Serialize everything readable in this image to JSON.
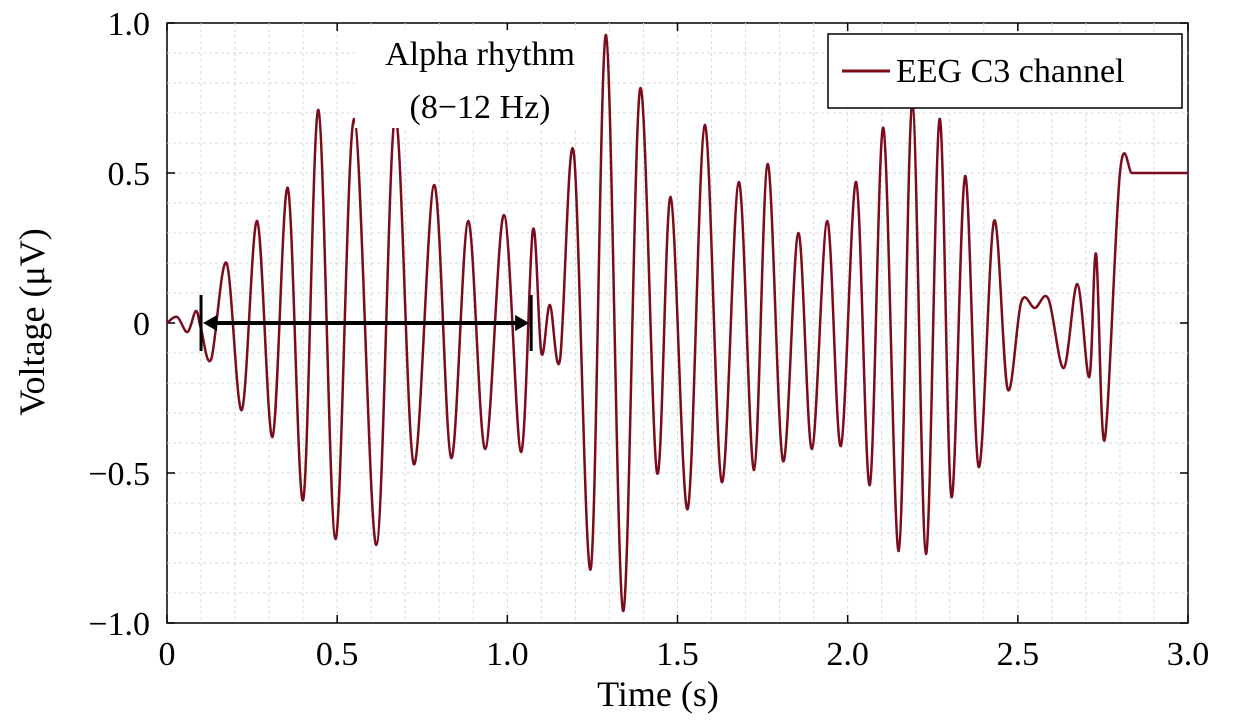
{
  "chart_data": {
    "type": "line",
    "title": "",
    "xlabel": "Time (s)",
    "ylabel": "Voltage (μV)",
    "xlim": [
      0,
      3.0
    ],
    "ylim": [
      -1.0,
      1.0
    ],
    "grid": true,
    "legend_position": "top-right",
    "xticks": [
      0,
      0.5,
      1.0,
      1.5,
      2.0,
      2.5,
      3.0
    ],
    "xtick_labels": [
      "0",
      "0.5",
      "1.0",
      "1.5",
      "2.0",
      "2.5",
      "3.0"
    ],
    "yticks": [
      1.0,
      0.5,
      0,
      -0.5,
      -1.0
    ],
    "ytick_labels": [
      "1.0",
      "0.5",
      "0",
      "−0.5",
      "−1.0"
    ],
    "series": [
      {
        "name": "EEG C3 channel",
        "color": "#7b0c1c",
        "x": [
          0,
          0.03,
          0.06,
          0.085,
          0.1,
          0.13,
          0.175,
          0.22,
          0.265,
          0.31,
          0.355,
          0.4,
          0.445,
          0.495,
          0.55,
          0.615,
          0.67,
          0.725,
          0.785,
          0.835,
          0.885,
          0.935,
          0.99,
          1.04,
          1.075,
          1.1,
          1.125,
          1.155,
          1.195,
          1.245,
          1.29,
          1.34,
          1.39,
          1.44,
          1.48,
          1.53,
          1.58,
          1.63,
          1.68,
          1.725,
          1.765,
          1.81,
          1.855,
          1.895,
          1.94,
          1.98,
          2.025,
          2.065,
          2.105,
          2.15,
          2.19,
          2.23,
          2.27,
          2.305,
          2.345,
          2.385,
          2.43,
          2.47,
          2.51,
          2.55,
          2.59,
          2.635,
          2.675,
          2.71,
          2.73,
          2.755,
          2.8,
          2.835,
          2.865,
          2.895,
          2.925,
          2.955,
          2.985,
          3.0
        ],
        "y": [
          0,
          0.02,
          -0.03,
          0.04,
          -0.02,
          -0.12,
          0.2,
          -0.29,
          0.34,
          -0.38,
          0.45,
          -0.59,
          0.71,
          -0.72,
          0.68,
          -0.74,
          0.69,
          -0.47,
          0.46,
          -0.45,
          0.34,
          -0.42,
          0.36,
          -0.43,
          0.31,
          -0.1,
          0.06,
          -0.12,
          0.57,
          -0.82,
          0.96,
          -0.96,
          0.78,
          -0.5,
          0.42,
          -0.62,
          0.66,
          -0.53,
          0.47,
          -0.49,
          0.53,
          -0.46,
          0.3,
          -0.42,
          0.34,
          -0.41,
          0.47,
          -0.54,
          0.65,
          -0.76,
          0.73,
          -0.77,
          0.68,
          -0.58,
          0.49,
          -0.48,
          0.34,
          -0.22,
          0.07,
          0.05,
          0.08,
          -0.15,
          0.13,
          -0.18,
          0.23,
          -0.39,
          0.5,
          0.5,
          0.5,
          0.5,
          0.5,
          0.5,
          0.5,
          0.5
        ]
      }
    ],
    "annotations": [
      {
        "lines": [
          "Alpha rhythm",
          "(8−12 Hz)"
        ],
        "x_start": 0.1,
        "x_end": 1.07,
        "y": 0,
        "style": "double-arrow"
      }
    ]
  }
}
